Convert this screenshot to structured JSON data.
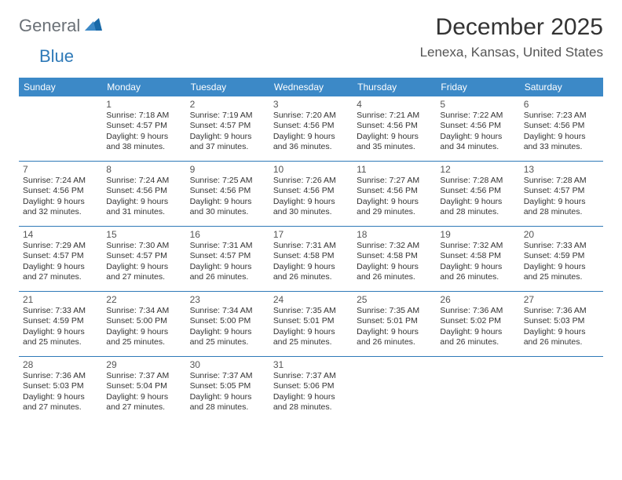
{
  "logo": {
    "part1": "General",
    "part2": "Blue"
  },
  "title": "December 2025",
  "location": "Lenexa, Kansas, United States",
  "colors": {
    "header_bg": "#3c89c7",
    "rule": "#2f7ab8",
    "logo_gray": "#6b7177",
    "logo_blue": "#2f7ab8",
    "text": "#333333"
  },
  "day_headers": [
    "Sunday",
    "Monday",
    "Tuesday",
    "Wednesday",
    "Thursday",
    "Friday",
    "Saturday"
  ],
  "weeks": [
    [
      null,
      {
        "n": "1",
        "sr": "Sunrise: 7:18 AM",
        "ss": "Sunset: 4:57 PM",
        "d1": "Daylight: 9 hours",
        "d2": "and 38 minutes."
      },
      {
        "n": "2",
        "sr": "Sunrise: 7:19 AM",
        "ss": "Sunset: 4:57 PM",
        "d1": "Daylight: 9 hours",
        "d2": "and 37 minutes."
      },
      {
        "n": "3",
        "sr": "Sunrise: 7:20 AM",
        "ss": "Sunset: 4:56 PM",
        "d1": "Daylight: 9 hours",
        "d2": "and 36 minutes."
      },
      {
        "n": "4",
        "sr": "Sunrise: 7:21 AM",
        "ss": "Sunset: 4:56 PM",
        "d1": "Daylight: 9 hours",
        "d2": "and 35 minutes."
      },
      {
        "n": "5",
        "sr": "Sunrise: 7:22 AM",
        "ss": "Sunset: 4:56 PM",
        "d1": "Daylight: 9 hours",
        "d2": "and 34 minutes."
      },
      {
        "n": "6",
        "sr": "Sunrise: 7:23 AM",
        "ss": "Sunset: 4:56 PM",
        "d1": "Daylight: 9 hours",
        "d2": "and 33 minutes."
      }
    ],
    [
      {
        "n": "7",
        "sr": "Sunrise: 7:24 AM",
        "ss": "Sunset: 4:56 PM",
        "d1": "Daylight: 9 hours",
        "d2": "and 32 minutes."
      },
      {
        "n": "8",
        "sr": "Sunrise: 7:24 AM",
        "ss": "Sunset: 4:56 PM",
        "d1": "Daylight: 9 hours",
        "d2": "and 31 minutes."
      },
      {
        "n": "9",
        "sr": "Sunrise: 7:25 AM",
        "ss": "Sunset: 4:56 PM",
        "d1": "Daylight: 9 hours",
        "d2": "and 30 minutes."
      },
      {
        "n": "10",
        "sr": "Sunrise: 7:26 AM",
        "ss": "Sunset: 4:56 PM",
        "d1": "Daylight: 9 hours",
        "d2": "and 30 minutes."
      },
      {
        "n": "11",
        "sr": "Sunrise: 7:27 AM",
        "ss": "Sunset: 4:56 PM",
        "d1": "Daylight: 9 hours",
        "d2": "and 29 minutes."
      },
      {
        "n": "12",
        "sr": "Sunrise: 7:28 AM",
        "ss": "Sunset: 4:56 PM",
        "d1": "Daylight: 9 hours",
        "d2": "and 28 minutes."
      },
      {
        "n": "13",
        "sr": "Sunrise: 7:28 AM",
        "ss": "Sunset: 4:57 PM",
        "d1": "Daylight: 9 hours",
        "d2": "and 28 minutes."
      }
    ],
    [
      {
        "n": "14",
        "sr": "Sunrise: 7:29 AM",
        "ss": "Sunset: 4:57 PM",
        "d1": "Daylight: 9 hours",
        "d2": "and 27 minutes."
      },
      {
        "n": "15",
        "sr": "Sunrise: 7:30 AM",
        "ss": "Sunset: 4:57 PM",
        "d1": "Daylight: 9 hours",
        "d2": "and 27 minutes."
      },
      {
        "n": "16",
        "sr": "Sunrise: 7:31 AM",
        "ss": "Sunset: 4:57 PM",
        "d1": "Daylight: 9 hours",
        "d2": "and 26 minutes."
      },
      {
        "n": "17",
        "sr": "Sunrise: 7:31 AM",
        "ss": "Sunset: 4:58 PM",
        "d1": "Daylight: 9 hours",
        "d2": "and 26 minutes."
      },
      {
        "n": "18",
        "sr": "Sunrise: 7:32 AM",
        "ss": "Sunset: 4:58 PM",
        "d1": "Daylight: 9 hours",
        "d2": "and 26 minutes."
      },
      {
        "n": "19",
        "sr": "Sunrise: 7:32 AM",
        "ss": "Sunset: 4:58 PM",
        "d1": "Daylight: 9 hours",
        "d2": "and 26 minutes."
      },
      {
        "n": "20",
        "sr": "Sunrise: 7:33 AM",
        "ss": "Sunset: 4:59 PM",
        "d1": "Daylight: 9 hours",
        "d2": "and 25 minutes."
      }
    ],
    [
      {
        "n": "21",
        "sr": "Sunrise: 7:33 AM",
        "ss": "Sunset: 4:59 PM",
        "d1": "Daylight: 9 hours",
        "d2": "and 25 minutes."
      },
      {
        "n": "22",
        "sr": "Sunrise: 7:34 AM",
        "ss": "Sunset: 5:00 PM",
        "d1": "Daylight: 9 hours",
        "d2": "and 25 minutes."
      },
      {
        "n": "23",
        "sr": "Sunrise: 7:34 AM",
        "ss": "Sunset: 5:00 PM",
        "d1": "Daylight: 9 hours",
        "d2": "and 25 minutes."
      },
      {
        "n": "24",
        "sr": "Sunrise: 7:35 AM",
        "ss": "Sunset: 5:01 PM",
        "d1": "Daylight: 9 hours",
        "d2": "and 25 minutes."
      },
      {
        "n": "25",
        "sr": "Sunrise: 7:35 AM",
        "ss": "Sunset: 5:01 PM",
        "d1": "Daylight: 9 hours",
        "d2": "and 26 minutes."
      },
      {
        "n": "26",
        "sr": "Sunrise: 7:36 AM",
        "ss": "Sunset: 5:02 PM",
        "d1": "Daylight: 9 hours",
        "d2": "and 26 minutes."
      },
      {
        "n": "27",
        "sr": "Sunrise: 7:36 AM",
        "ss": "Sunset: 5:03 PM",
        "d1": "Daylight: 9 hours",
        "d2": "and 26 minutes."
      }
    ],
    [
      {
        "n": "28",
        "sr": "Sunrise: 7:36 AM",
        "ss": "Sunset: 5:03 PM",
        "d1": "Daylight: 9 hours",
        "d2": "and 27 minutes."
      },
      {
        "n": "29",
        "sr": "Sunrise: 7:37 AM",
        "ss": "Sunset: 5:04 PM",
        "d1": "Daylight: 9 hours",
        "d2": "and 27 minutes."
      },
      {
        "n": "30",
        "sr": "Sunrise: 7:37 AM",
        "ss": "Sunset: 5:05 PM",
        "d1": "Daylight: 9 hours",
        "d2": "and 28 minutes."
      },
      {
        "n": "31",
        "sr": "Sunrise: 7:37 AM",
        "ss": "Sunset: 5:06 PM",
        "d1": "Daylight: 9 hours",
        "d2": "and 28 minutes."
      },
      null,
      null,
      null
    ]
  ]
}
